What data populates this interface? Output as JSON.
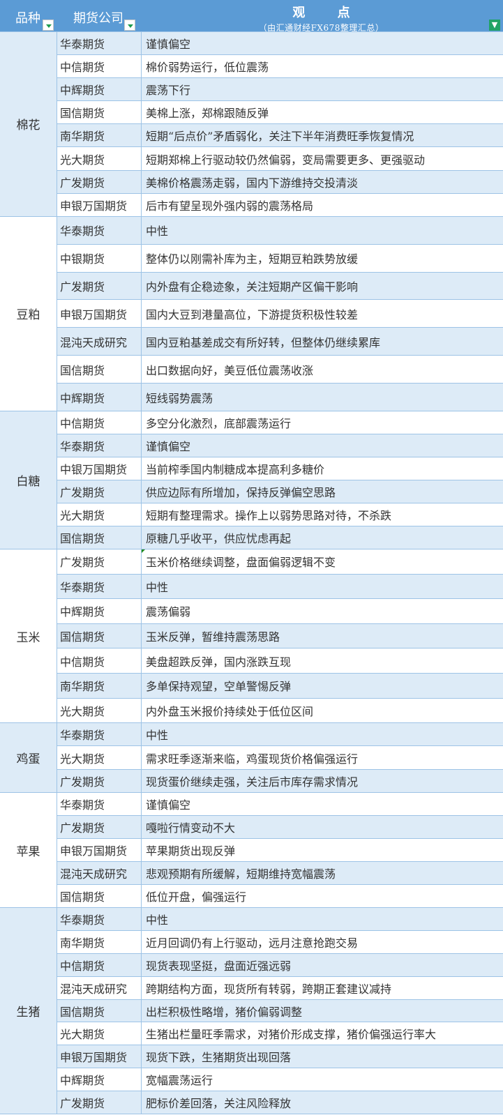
{
  "header": {
    "variety": "品种",
    "company": "期货公司",
    "view_title": "观 点",
    "view_subtitle": "（由汇通财经FX678整理汇总）"
  },
  "colors": {
    "header_bg": "#5b9bd5",
    "band": "#ddebf7",
    "border": "#9dc3e6",
    "filter_green": "#21a366"
  },
  "icons": {
    "dropdown": "dropdown-arrow-icon",
    "filter": "filter-icon"
  },
  "groups": [
    {
      "variety": "棉花",
      "rows": [
        {
          "company": "华泰期货",
          "view": "谨慎偏空"
        },
        {
          "company": "中信期货",
          "view": "棉价弱势运行，低位震荡"
        },
        {
          "company": "中辉期货",
          "view": "震荡下行"
        },
        {
          "company": "国信期货",
          "view": "美棉上涨，郑棉跟随反弹"
        },
        {
          "company": "南华期货",
          "view": "短期“后点价”矛盾弱化，关注下半年消费旺季恢复情况"
        },
        {
          "company": "光大期货",
          "view": "短期郑棉上行驱动较仍然偏弱，变局需要更多、更强驱动"
        },
        {
          "company": "广发期货",
          "view": "美棉价格震荡走弱，国内下游维持交投清淡"
        },
        {
          "company": "申银万国期货",
          "view": "后市有望呈现外强内弱的震荡格局"
        }
      ]
    },
    {
      "variety": "豆粕",
      "rows": [
        {
          "company": "华泰期货",
          "view": "中性"
        },
        {
          "company": "中银期货",
          "view": "整体仍以刚需补库为主，短期豆粕跌势放缓"
        },
        {
          "company": "广发期货",
          "view": "内外盘有企稳迹象，关注短期产区偏干影响"
        },
        {
          "company": "申银万国期货",
          "view": "国内大豆到港量高位，下游提货积极性较差"
        },
        {
          "company": "混沌天成研究",
          "view": "国内豆粕基差成交有所好转，但整体仍继续累库"
        },
        {
          "company": "国信期货",
          "view": "出口数据向好，美豆低位震荡收涨"
        },
        {
          "company": "中辉期货",
          "view": "短线弱势震荡"
        }
      ]
    },
    {
      "variety": "白糖",
      "rows": [
        {
          "company": "中信期货",
          "view": "多空分化激烈，底部震荡运行"
        },
        {
          "company": "华泰期货",
          "view": "谨慎偏空"
        },
        {
          "company": "中银万国期货",
          "view": "当前榨季国内制糖成本提高利多糖价"
        },
        {
          "company": "广发期货",
          "view": "供应边际有所增加，保持反弹偏空思路"
        },
        {
          "company": "光大期货",
          "view": "短期有整理需求。操作上以弱势思路对待，不杀跌"
        },
        {
          "company": "国信期货",
          "view": "原糖几乎收平，供应忧虑再起"
        }
      ]
    },
    {
      "variety": "玉米",
      "rows": [
        {
          "company": "广发期货",
          "view": "玉米价格继续调整，盘面偏弱逻辑不变"
        },
        {
          "company": "华泰期货",
          "view": "中性"
        },
        {
          "company": "中辉期货",
          "view": "震荡偏弱"
        },
        {
          "company": "国信期货",
          "view": "玉米反弹，暂维持震荡思路"
        },
        {
          "company": "中信期货",
          "view": "美盘超跌反弹，国内涨跌互现"
        },
        {
          "company": "南华期货",
          "view": "多单保持观望，空单警惕反弹"
        },
        {
          "company": "光大期货",
          "view": "内外盘玉米报价持续处于低位区间"
        }
      ]
    },
    {
      "variety": "鸡蛋",
      "rows": [
        {
          "company": "华泰期货",
          "view": "中性"
        },
        {
          "company": "光大期货",
          "view": "需求旺季逐渐来临，鸡蛋现货价格偏强运行"
        },
        {
          "company": "广发期货",
          "view": "现货蛋价继续走强，关注后市库存需求情况"
        }
      ]
    },
    {
      "variety": "苹果",
      "rows": [
        {
          "company": "华泰期货",
          "view": "谨慎偏空"
        },
        {
          "company": "广发期货",
          "view": "嘎啦行情变动不大"
        },
        {
          "company": "申银万国期货",
          "view": "苹果期货出现反弹"
        },
        {
          "company": "混沌天成研究",
          "view": "悲观预期有所缓解，短期维持宽幅震荡"
        },
        {
          "company": "国信期货",
          "view": "低位开盘，偏强运行"
        }
      ]
    },
    {
      "variety": "生猪",
      "rows": [
        {
          "company": "华泰期货",
          "view": "中性"
        },
        {
          "company": "南华期货",
          "view": "近月回调仍有上行驱动，远月注意抢跑交易"
        },
        {
          "company": "中信期货",
          "view": "现货表现坚挺，盘面近强远弱"
        },
        {
          "company": "混沌天成研究",
          "view": "跨期结构方面，现货所有转弱，跨期正套建议减持"
        },
        {
          "company": "国信期货",
          "view": "出栏积极性略增，猪价偏弱调整"
        },
        {
          "company": "光大期货",
          "view": "生猪出栏量旺季需求，对猪价形成支撑，猪价偏强运行率大"
        },
        {
          "company": "申银万国期货",
          "view": "现货下跌，生猪期货出现回落"
        },
        {
          "company": "中辉期货",
          "view": "宽幅震荡运行"
        },
        {
          "company": "广发期货",
          "view": "肥标价差回落，关注风险释放"
        }
      ]
    }
  ]
}
